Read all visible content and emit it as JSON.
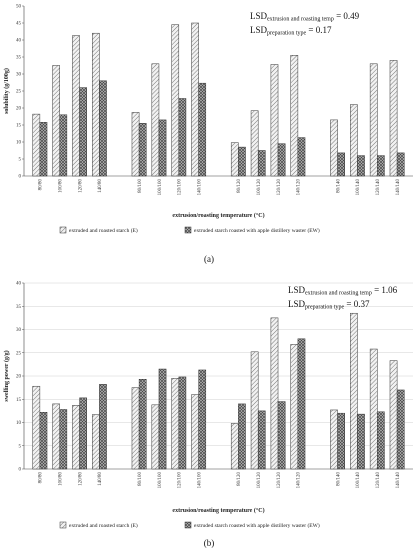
{
  "chart_data": [
    {
      "type": "bar",
      "panel_label": "(a)",
      "ylabel": "solubility (g/100g)",
      "xlabel": "extrusion/roasting temperature (°C)",
      "ylim": [
        0,
        50
      ],
      "yticks": [
        0,
        5,
        10,
        15,
        20,
        25,
        30,
        35,
        40,
        45,
        50
      ],
      "grid": false,
      "groups": [
        [
          "80/80",
          "100/80",
          "120/80",
          "140/80"
        ],
        [
          "80/100",
          "100/100",
          "120/100",
          "140/100"
        ],
        [
          "80/120",
          "100/120",
          "120/120",
          "140/120"
        ],
        [
          "80/140",
          "100/140",
          "120/140",
          "140/140"
        ]
      ],
      "series": [
        {
          "name": "extruded and roasted starch (E)",
          "pattern": "hatch",
          "values": [
            18.2,
            32.5,
            41.3,
            42.0,
            18.7,
            33.0,
            44.5,
            45.0,
            9.8,
            19.2,
            32.8,
            35.5,
            16.5,
            21.0,
            33.0,
            34.0
          ]
        },
        {
          "name": "extruded starch roasted with apple distillery waster (EW)",
          "pattern": "crosshatch",
          "values": [
            15.8,
            18.0,
            26.0,
            28.0,
            15.5,
            16.5,
            22.8,
            27.3,
            8.5,
            7.5,
            9.5,
            11.3,
            6.8,
            6.0,
            6.0,
            6.8
          ]
        }
      ],
      "annotation": {
        "line1_main": "LSD",
        "line1_sub": "extrusion and roasting temp",
        "line1_val": " = 0.49",
        "line2_main": "LSD",
        "line2_sub": "preparation type",
        "line2_val": " = 0.17"
      },
      "legend_position": "bottom"
    },
    {
      "type": "bar",
      "panel_label": "(b)",
      "ylabel": "swelling power (g/g)",
      "xlabel": "extrusion/roasting temperature (°C)",
      "ylim": [
        0,
        40
      ],
      "yticks": [
        0,
        5,
        10,
        15,
        20,
        25,
        30,
        35,
        40
      ],
      "grid": true,
      "groups": [
        [
          "80/80",
          "100/80",
          "120/80",
          "140/80"
        ],
        [
          "80/100",
          "100/100",
          "120/100",
          "140/100"
        ],
        [
          "80/120",
          "100/120",
          "120/120",
          "140/120"
        ],
        [
          "80/140",
          "100/140",
          "120/140",
          "140/140"
        ]
      ],
      "series": [
        {
          "name": "extruded and roasted starch (E)",
          "pattern": "hatch",
          "values": [
            17.8,
            14.0,
            13.7,
            11.7,
            17.5,
            13.8,
            19.5,
            16.0,
            9.8,
            25.2,
            32.5,
            26.8,
            12.7,
            33.5,
            25.8,
            23.3
          ]
        },
        {
          "name": "extruded starch roasted with apple distillery waster (EW)",
          "pattern": "crosshatch",
          "values": [
            12.2,
            12.8,
            15.3,
            18.2,
            19.3,
            21.5,
            19.8,
            21.3,
            14.0,
            12.5,
            14.5,
            28.0,
            12.0,
            11.8,
            12.3,
            17.0
          ]
        }
      ],
      "annotation": {
        "line1_main": "LSD",
        "line1_sub": "extrusion and roasting temp",
        "line1_val": " = 1.06",
        "line2_main": "LSD",
        "line2_sub": "preparation type",
        "line2_val": " = 0.37"
      },
      "legend_position": "bottom"
    }
  ]
}
